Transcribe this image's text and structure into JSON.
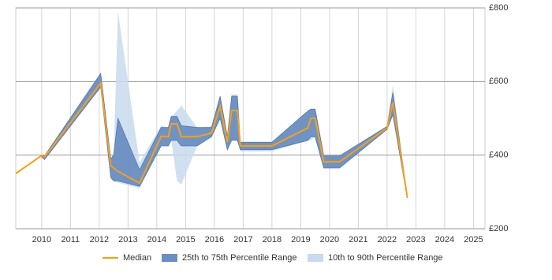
{
  "chart_data": {
    "type": "range-line",
    "x": [
      2009.1,
      2010.0,
      2010.1,
      2012.05,
      2012.4,
      2012.5,
      2012.65,
      2013.4,
      2014.15,
      2014.4,
      2014.5,
      2014.7,
      2014.85,
      2015.4,
      2015.9,
      2016.2,
      2016.45,
      2016.6,
      2016.8,
      2016.9,
      2018.0,
      2019.25,
      2019.35,
      2019.5,
      2019.8,
      2020.35,
      2022.0,
      2022.2,
      2022.7
    ],
    "series": [
      {
        "name": "Median",
        "color": "#f5a01a",
        "values": [
          350,
          399,
          395,
          596,
          371,
          365,
          356,
          324,
          451,
          450,
          485,
          485,
          450,
          450,
          460,
          532,
          436,
          521,
          521,
          425,
          425,
          474,
          500,
          500,
          382,
          382,
          474,
          543,
          286
        ]
      },
      {
        "name": "25th to 75th Percentile Range",
        "color": "#6b8fc2",
        "lower": [
          null,
          395,
          388,
          585,
          340,
          330,
          330,
          315,
          425,
          425,
          440,
          440,
          425,
          425,
          450,
          500,
          415,
          440,
          440,
          415,
          415,
          440,
          450,
          450,
          365,
          365,
          470,
          510,
          284
        ],
        "upper": [
          null,
          400,
          398,
          622,
          390,
          400,
          500,
          360,
          475,
          475,
          505,
          505,
          480,
          475,
          475,
          560,
          450,
          560,
          560,
          435,
          435,
          520,
          525,
          525,
          398,
          398,
          478,
          570,
          288
        ]
      },
      {
        "name": "10th to 90th Percentile Range",
        "color": "#c9daee",
        "lower": [
          null,
          395,
          388,
          585,
          335,
          330,
          325,
          310,
          425,
          425,
          440,
          330,
          320,
          425,
          450,
          500,
          410,
          440,
          440,
          410,
          410,
          440,
          440,
          450,
          365,
          365,
          470,
          510,
          284
        ],
        "upper": [
          null,
          400,
          398,
          622,
          390,
          400,
          790,
          380,
          480,
          475,
          505,
          520,
          535,
          475,
          478,
          560,
          455,
          565,
          565,
          435,
          435,
          510,
          525,
          525,
          398,
          398,
          478,
          590,
          288
        ]
      }
    ],
    "xlim": [
      2009.1,
      2025.4
    ],
    "xticks": [
      2010,
      2011,
      2012,
      2013,
      2014,
      2015,
      2016,
      2017,
      2018,
      2019,
      2020,
      2021,
      2022,
      2023,
      2024,
      2025
    ],
    "ylim": [
      200,
      800
    ],
    "yticks": [
      {
        "value": 200,
        "label": "£200"
      },
      {
        "value": 400,
        "label": "£400"
      },
      {
        "value": 600,
        "label": "£600"
      },
      {
        "value": 800,
        "label": "£800"
      }
    ],
    "grid": true,
    "legend": "bottom"
  }
}
